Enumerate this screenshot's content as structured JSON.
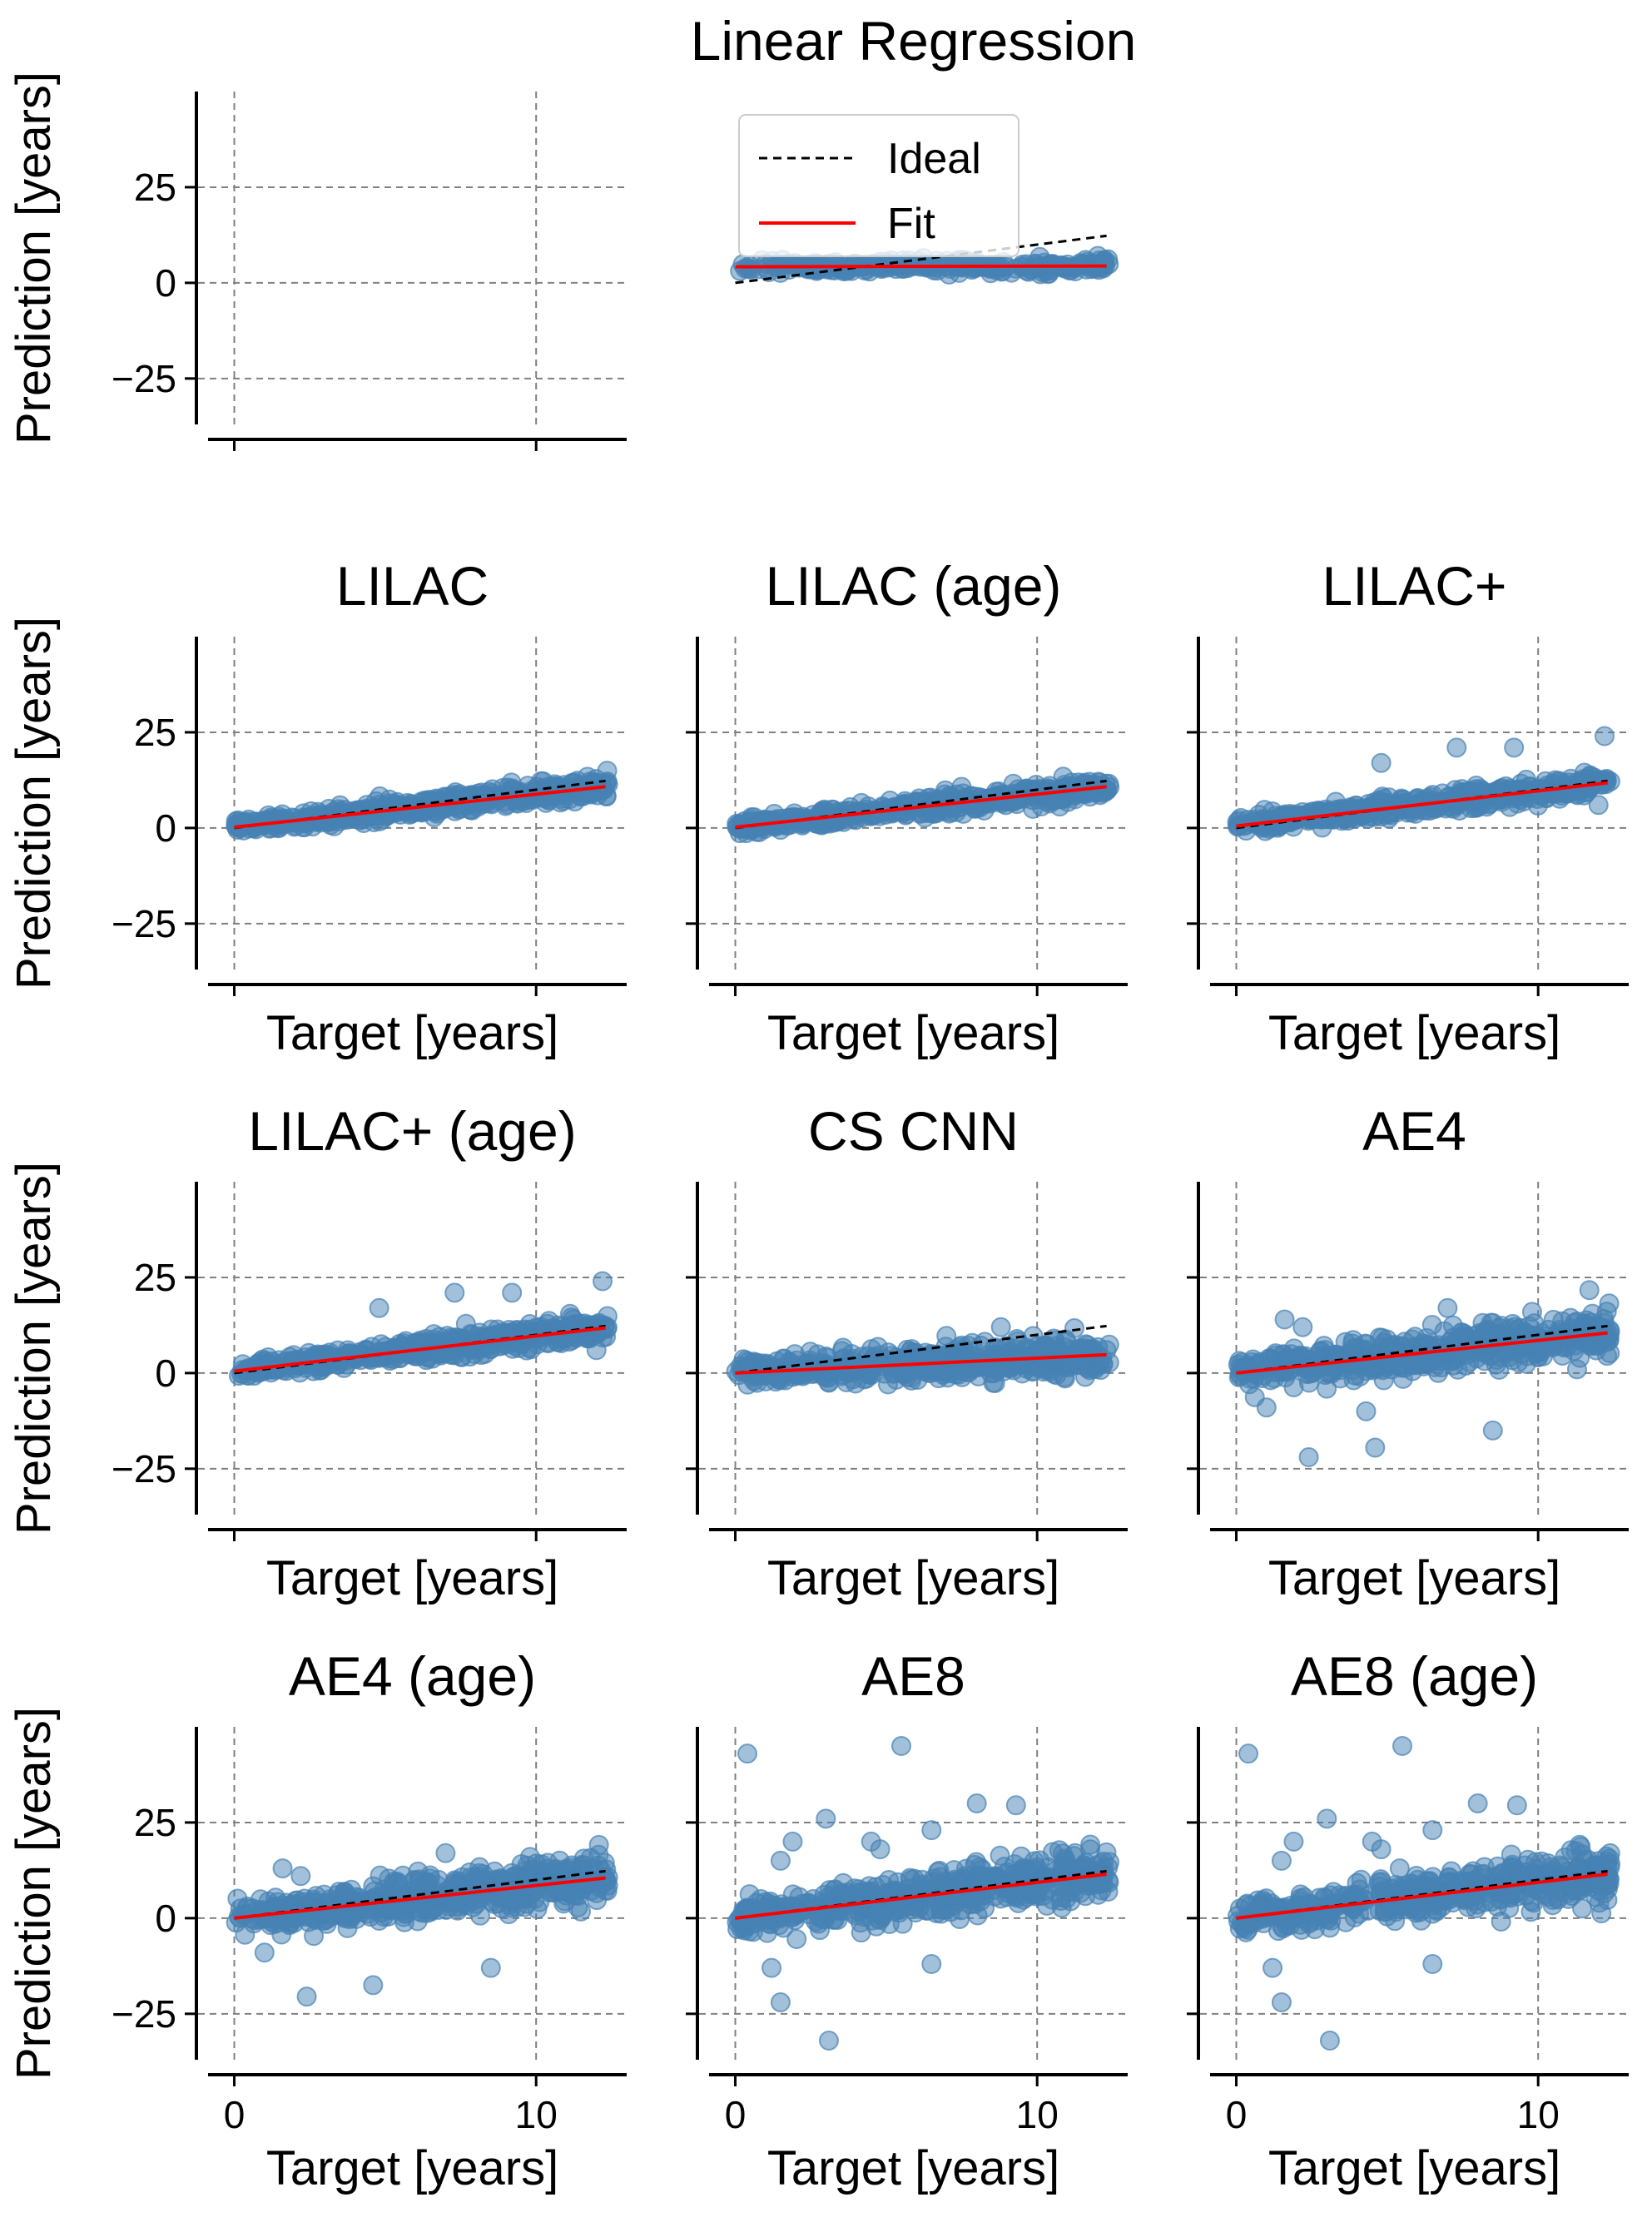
{
  "colors": {
    "points": "#4682b4",
    "fit": "#ff0000",
    "ideal": "#000000",
    "grid": "#808080"
  },
  "legend": {
    "ideal_label": "Ideal",
    "fit_label": "Fit",
    "placement": "upper-left of top-middle panel"
  },
  "chart_data": [
    {
      "type": "scatter",
      "title": "Linear Regression",
      "ylabel": "Prediction [years]",
      "xlabel": "",
      "xlim": [
        -1.2,
        13
      ],
      "ylim": [
        -37,
        50
      ],
      "xticks": [
        0,
        10
      ],
      "yticks": [
        -25,
        0,
        25
      ],
      "xtick_labels_shown": false,
      "grid": true,
      "ideal": {
        "x": [
          0,
          12.3
        ],
        "y": [
          0,
          12.3
        ]
      },
      "fit": {
        "x": [
          0,
          12.3
        ],
        "y": [
          4.2,
          4.4
        ]
      },
      "scatter": {
        "points": 260,
        "spread": 1.0,
        "outliers": []
      },
      "note": "axes box shown at left; scatter drawn offset to the middle column"
    },
    {
      "type": "scatter",
      "title": "LILAC",
      "ylabel": "Prediction [years]",
      "xlabel": "Target [years]",
      "xlim": [
        -1.2,
        13
      ],
      "ylim": [
        -37,
        50
      ],
      "xticks": [
        0,
        10
      ],
      "yticks": [
        -25,
        0,
        25
      ],
      "xtick_labels_shown": false,
      "grid": true,
      "ideal": {
        "x": [
          0,
          12.3
        ],
        "y": [
          0,
          12.3
        ]
      },
      "fit": {
        "x": [
          0,
          12.3
        ],
        "y": [
          0.2,
          10.8
        ]
      },
      "scatter": {
        "points": 520,
        "spread": 1.4,
        "outliers": []
      }
    },
    {
      "type": "scatter",
      "title": "LILAC (age)",
      "ylabel": "",
      "xlabel": "Target [years]",
      "xlim": [
        -1.2,
        13
      ],
      "ylim": [
        -37,
        50
      ],
      "xticks": [
        0,
        10
      ],
      "yticks": [
        -25,
        0,
        25
      ],
      "xtick_labels_shown": false,
      "grid": true,
      "ideal": {
        "x": [
          0,
          12.3
        ],
        "y": [
          0,
          12.3
        ]
      },
      "fit": {
        "x": [
          0,
          12.3
        ],
        "y": [
          0.2,
          10.8
        ]
      },
      "scatter": {
        "points": 520,
        "spread": 1.4,
        "outliers": []
      }
    },
    {
      "type": "scatter",
      "title": "LILAC+",
      "ylabel": "",
      "xlabel": "Target [years]",
      "xlim": [
        -1.2,
        13
      ],
      "ylim": [
        -37,
        50
      ],
      "xticks": [
        0,
        10
      ],
      "yticks": [
        -25,
        0,
        25
      ],
      "xtick_labels_shown": false,
      "grid": true,
      "ideal": {
        "x": [
          0,
          12.3
        ],
        "y": [
          0,
          12.3
        ]
      },
      "fit": {
        "x": [
          0,
          12.3
        ],
        "y": [
          0.5,
          11.8
        ]
      },
      "scatter": {
        "points": 520,
        "spread": 1.6,
        "outliers": [
          [
            4.8,
            17
          ],
          [
            7.3,
            21
          ],
          [
            9.2,
            21
          ],
          [
            12.2,
            24
          ],
          [
            12.0,
            6
          ]
        ]
      }
    },
    {
      "type": "scatter",
      "title": "LILAC+ (age)",
      "ylabel": "Prediction [years]",
      "xlabel": "Target [years]",
      "xlim": [
        -1.2,
        13
      ],
      "ylim": [
        -37,
        50
      ],
      "xticks": [
        0,
        10
      ],
      "yticks": [
        -25,
        0,
        25
      ],
      "xtick_labels_shown": false,
      "grid": true,
      "ideal": {
        "x": [
          0,
          12.3
        ],
        "y": [
          0,
          12.3
        ]
      },
      "fit": {
        "x": [
          0,
          12.3
        ],
        "y": [
          0.5,
          11.8
        ]
      },
      "scatter": {
        "points": 520,
        "spread": 1.6,
        "outliers": [
          [
            4.8,
            17
          ],
          [
            7.3,
            21
          ],
          [
            9.2,
            21
          ],
          [
            12.2,
            24
          ],
          [
            12.0,
            6
          ]
        ]
      }
    },
    {
      "type": "scatter",
      "title": "CS CNN",
      "ylabel": "",
      "xlabel": "Target [years]",
      "xlim": [
        -1.2,
        13
      ],
      "ylim": [
        -37,
        50
      ],
      "xticks": [
        0,
        10
      ],
      "yticks": [
        -25,
        0,
        25
      ],
      "xtick_labels_shown": false,
      "grid": true,
      "ideal": {
        "x": [
          0,
          12.3
        ],
        "y": [
          0,
          12.3
        ]
      },
      "fit": {
        "x": [
          0,
          12.3
        ],
        "y": [
          0.0,
          4.8
        ]
      },
      "scatter": {
        "points": 520,
        "spread": 2.6,
        "outliers": [
          [
            8.8,
            12
          ],
          [
            12.3,
            6
          ]
        ]
      }
    },
    {
      "type": "scatter",
      "title": "AE4",
      "ylabel": "",
      "xlabel": "Target [years]",
      "xlim": [
        -1.2,
        13
      ],
      "ylim": [
        -37,
        50
      ],
      "xticks": [
        0,
        10
      ],
      "yticks": [
        -25,
        0,
        25
      ],
      "xtick_labels_shown": false,
      "grid": true,
      "ideal": {
        "x": [
          0,
          12.3
        ],
        "y": [
          0,
          12.3
        ]
      },
      "fit": {
        "x": [
          0,
          12.3
        ],
        "y": [
          0.0,
          10.5
        ]
      },
      "scatter": {
        "points": 520,
        "spread": 3.2,
        "outliers": [
          [
            2.4,
            -22
          ],
          [
            4.6,
            -19.5
          ],
          [
            4.3,
            -10
          ],
          [
            8.5,
            -15
          ],
          [
            1.0,
            -9
          ],
          [
            1.6,
            14
          ],
          [
            2.2,
            12
          ],
          [
            7.0,
            17
          ],
          [
            9.8,
            16
          ]
        ]
      }
    },
    {
      "type": "scatter",
      "title": "AE4 (age)",
      "ylabel": "Prediction [years]",
      "xlabel": "Target [years]",
      "xlim": [
        -1.2,
        13
      ],
      "ylim": [
        -37,
        50
      ],
      "xticks": [
        0,
        10
      ],
      "yticks": [
        -25,
        0,
        25
      ],
      "xtick_labels_shown": true,
      "grid": true,
      "ideal": {
        "x": [
          0,
          12.3
        ],
        "y": [
          0,
          12.3
        ]
      },
      "fit": {
        "x": [
          0,
          12.3
        ],
        "y": [
          0.0,
          10.5
        ]
      },
      "scatter": {
        "points": 520,
        "spread": 3.2,
        "outliers": [
          [
            2.4,
            -20.5
          ],
          [
            4.6,
            -17.5
          ],
          [
            8.5,
            -13
          ],
          [
            1.0,
            -9
          ],
          [
            1.6,
            13
          ],
          [
            2.2,
            11
          ],
          [
            7.0,
            17
          ],
          [
            9.8,
            16
          ]
        ]
      }
    },
    {
      "type": "scatter",
      "title": "AE8",
      "ylabel": "",
      "xlabel": "Target [years]",
      "xlim": [
        -1.2,
        13
      ],
      "ylim": [
        -37,
        50
      ],
      "xticks": [
        0,
        10
      ],
      "yticks": [
        -25,
        0,
        25
      ],
      "xtick_labels_shown": true,
      "grid": true,
      "ideal": {
        "x": [
          0,
          12.3
        ],
        "y": [
          0,
          12.3
        ]
      },
      "fit": {
        "x": [
          0,
          12.3
        ],
        "y": [
          0.0,
          11.5
        ]
      },
      "scatter": {
        "points": 520,
        "spread": 3.4,
        "outliers": [
          [
            0.4,
            43
          ],
          [
            5.5,
            45
          ],
          [
            3.0,
            26
          ],
          [
            8.0,
            30
          ],
          [
            9.3,
            29.5
          ],
          [
            1.9,
            20
          ],
          [
            4.5,
            20
          ],
          [
            6.5,
            23
          ],
          [
            1.5,
            15
          ],
          [
            4.8,
            18
          ],
          [
            1.2,
            -13
          ],
          [
            1.5,
            -22
          ],
          [
            3.1,
            -32
          ],
          [
            6.5,
            -12
          ]
        ]
      }
    },
    {
      "type": "scatter",
      "title": "AE8 (age)",
      "ylabel": "",
      "xlabel": "Target [years]",
      "xlim": [
        -1.2,
        13
      ],
      "ylim": [
        -37,
        50
      ],
      "xticks": [
        0,
        10
      ],
      "yticks": [
        -25,
        0,
        25
      ],
      "xtick_labels_shown": true,
      "grid": true,
      "ideal": {
        "x": [
          0,
          12.3
        ],
        "y": [
          0,
          12.3
        ]
      },
      "fit": {
        "x": [
          0,
          12.3
        ],
        "y": [
          0.0,
          11.5
        ]
      },
      "scatter": {
        "points": 520,
        "spread": 3.4,
        "outliers": [
          [
            0.4,
            43
          ],
          [
            5.5,
            45
          ],
          [
            3.0,
            26
          ],
          [
            8.0,
            30
          ],
          [
            9.3,
            29.5
          ],
          [
            1.9,
            20
          ],
          [
            4.5,
            20
          ],
          [
            6.5,
            23
          ],
          [
            1.5,
            15
          ],
          [
            4.8,
            18
          ],
          [
            1.2,
            -13
          ],
          [
            1.5,
            -22
          ],
          [
            3.1,
            -32
          ],
          [
            6.5,
            -12
          ]
        ]
      }
    }
  ]
}
